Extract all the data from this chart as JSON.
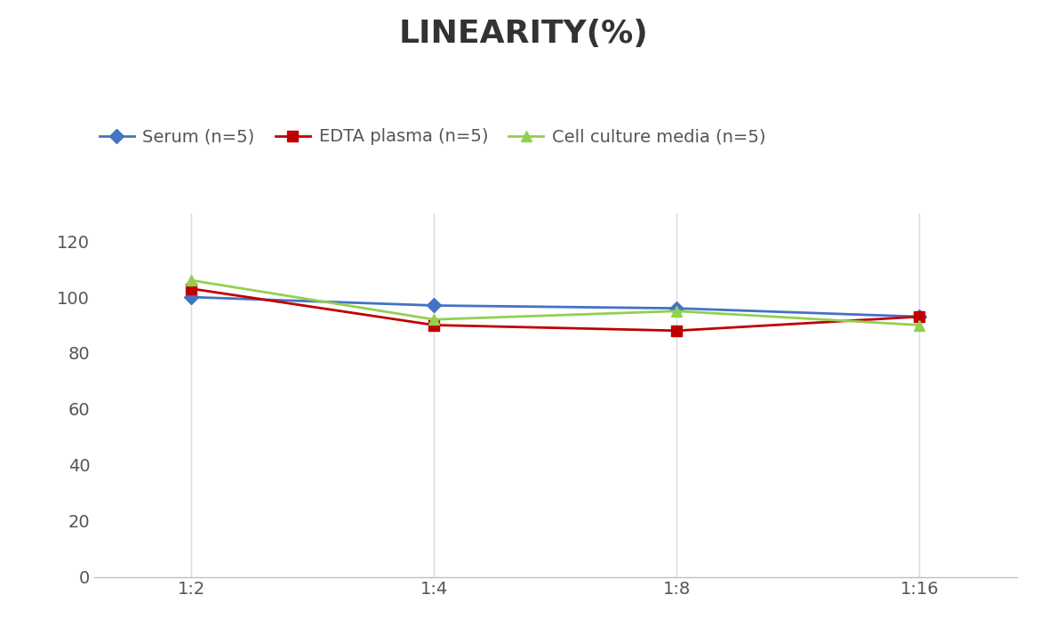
{
  "title": "LINEARITY(%)",
  "x_labels": [
    "1:2",
    "1:4",
    "1:8",
    "1:16"
  ],
  "x_positions": [
    0,
    1,
    2,
    3
  ],
  "series": [
    {
      "label": "Serum (n=5)",
      "values": [
        100,
        97,
        96,
        93
      ],
      "color": "#4472C4",
      "marker": "D",
      "markersize": 8,
      "linewidth": 2
    },
    {
      "label": "EDTA plasma (n=5)",
      "values": [
        103,
        90,
        88,
        93
      ],
      "color": "#C00000",
      "marker": "s",
      "markersize": 8,
      "linewidth": 2
    },
    {
      "label": "Cell culture media (n=5)",
      "values": [
        106,
        92,
        95,
        90
      ],
      "color": "#92D050",
      "marker": "^",
      "markersize": 9,
      "linewidth": 2
    }
  ],
  "ylim": [
    0,
    130
  ],
  "yticks": [
    0,
    20,
    40,
    60,
    80,
    100,
    120
  ],
  "background_color": "#ffffff",
  "grid_color": "#d9d9d9",
  "title_fontsize": 26,
  "legend_fontsize": 14,
  "tick_fontsize": 14
}
